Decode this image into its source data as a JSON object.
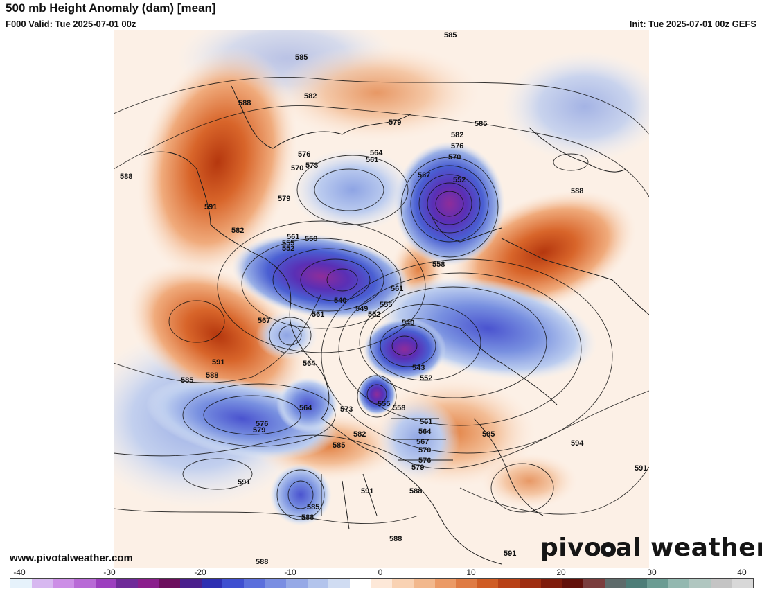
{
  "header": {
    "title": "500 mb Height Anomaly (dam) [mean]",
    "valid": "F000 Valid: Tue 2025-07-01 00z",
    "init": "Init: Tue 2025-07-01 00z GEFS"
  },
  "footer": {
    "site": "www.pivotalweather.com",
    "logo_left": "pivo",
    "logo_right": "al weather"
  },
  "colorbar": {
    "ticks": [
      "-40",
      "-30",
      "-20",
      "-10",
      "0",
      "10",
      "20",
      "30",
      "40"
    ],
    "colors": [
      "#e6f2fb",
      "#d7b8f0",
      "#cc8ee6",
      "#b86ad6",
      "#9c3fbf",
      "#6f2a99",
      "#8a1e8c",
      "#6c0f5e",
      "#4a1f8c",
      "#2e2fb2",
      "#3f4fd0",
      "#5b6fdc",
      "#7a8ee2",
      "#96a9e6",
      "#b3c4ec",
      "#d0dcf2",
      "#ffffff",
      "#fde8d8",
      "#f9d2b3",
      "#f2b88d",
      "#eb9a66",
      "#df7b44",
      "#cf5c24",
      "#b84116",
      "#9e2d10",
      "#7f1c0c",
      "#62100a",
      "#7a3d3d",
      "#5e6b6b",
      "#4d7d78",
      "#6b9c93",
      "#93b8b0",
      "#b0c6c0",
      "#c4c4c4",
      "#d8d8d8"
    ]
  },
  "map": {
    "icons": {
      "land": "continent-outlines"
    },
    "contour_labels": [
      {
        "text": "585",
        "id": "585-top"
      },
      {
        "text": "588",
        "id": "588-alaska"
      },
      {
        "text": "582",
        "id": "582-n"
      },
      {
        "text": "585",
        "id": "585-siberia"
      },
      {
        "text": "579",
        "id": "579-arctic"
      },
      {
        "text": "585",
        "id": "585-ne"
      },
      {
        "text": "582",
        "id": "582-ne"
      },
      {
        "text": "576",
        "id": "576-ne"
      },
      {
        "text": "570",
        "id": "570-ne"
      },
      {
        "text": "564",
        "id": "564-n"
      },
      {
        "text": "561",
        "id": "561-n"
      },
      {
        "text": "576",
        "id": "576-nw"
      },
      {
        "text": "570",
        "id": "570-nw"
      },
      {
        "text": "573",
        "id": "573-nw"
      },
      {
        "text": "567",
        "id": "567-n"
      },
      {
        "text": "552",
        "id": "552-nord"
      },
      {
        "text": "588",
        "id": "588-w"
      },
      {
        "text": "591",
        "id": "591-w"
      },
      {
        "text": "579",
        "id": "579-w"
      },
      {
        "text": "588",
        "id": "588-e"
      },
      {
        "text": "582",
        "id": "582-w"
      },
      {
        "text": "561",
        "id": "561-low"
      },
      {
        "text": "555",
        "id": "555-low"
      },
      {
        "text": "552",
        "id": "552-low"
      },
      {
        "text": "558",
        "id": "558-low"
      },
      {
        "text": "558",
        "id": "558-mid"
      },
      {
        "text": "561",
        "id": "561-center"
      },
      {
        "text": "540",
        "id": "540-w"
      },
      {
        "text": "549",
        "id": "549-c"
      },
      {
        "text": "555",
        "id": "555-c"
      },
      {
        "text": "552",
        "id": "552-c"
      },
      {
        "text": "567",
        "id": "567-pac"
      },
      {
        "text": "561",
        "id": "561-pac"
      },
      {
        "text": "540",
        "id": "540-c"
      },
      {
        "text": "591",
        "id": "591-pac"
      },
      {
        "text": "588",
        "id": "588-pac"
      },
      {
        "text": "585",
        "id": "585-pac"
      },
      {
        "text": "564",
        "id": "564-ak"
      },
      {
        "text": "543",
        "id": "543-c"
      },
      {
        "text": "552",
        "id": "552-s"
      },
      {
        "text": "555",
        "id": "555-hud"
      },
      {
        "text": "558",
        "id": "558-hud"
      },
      {
        "text": "564",
        "id": "564-pac"
      },
      {
        "text": "576",
        "id": "576-pac"
      },
      {
        "text": "579",
        "id": "579-pac"
      },
      {
        "text": "573",
        "id": "573-bc"
      },
      {
        "text": "582",
        "id": "582-bc"
      },
      {
        "text": "585",
        "id": "585-bc"
      },
      {
        "text": "561",
        "id": "561-ont"
      },
      {
        "text": "564",
        "id": "564-ont"
      },
      {
        "text": "567",
        "id": "567-ont"
      },
      {
        "text": "570",
        "id": "570-ont"
      },
      {
        "text": "576",
        "id": "576-ont"
      },
      {
        "text": "579",
        "id": "579-ont"
      },
      {
        "text": "585",
        "id": "585-atl"
      },
      {
        "text": "594",
        "id": "594-atl"
      },
      {
        "text": "591",
        "id": "591-atl"
      },
      {
        "text": "591",
        "id": "591-epac"
      },
      {
        "text": "591",
        "id": "591-us"
      },
      {
        "text": "588",
        "id": "588-us"
      },
      {
        "text": "585",
        "id": "585-baja"
      },
      {
        "text": "588",
        "id": "588-baja"
      },
      {
        "text": "588",
        "id": "588-mex"
      },
      {
        "text": "588",
        "id": "588-sw"
      },
      {
        "text": "591",
        "id": "591-carib"
      }
    ]
  }
}
